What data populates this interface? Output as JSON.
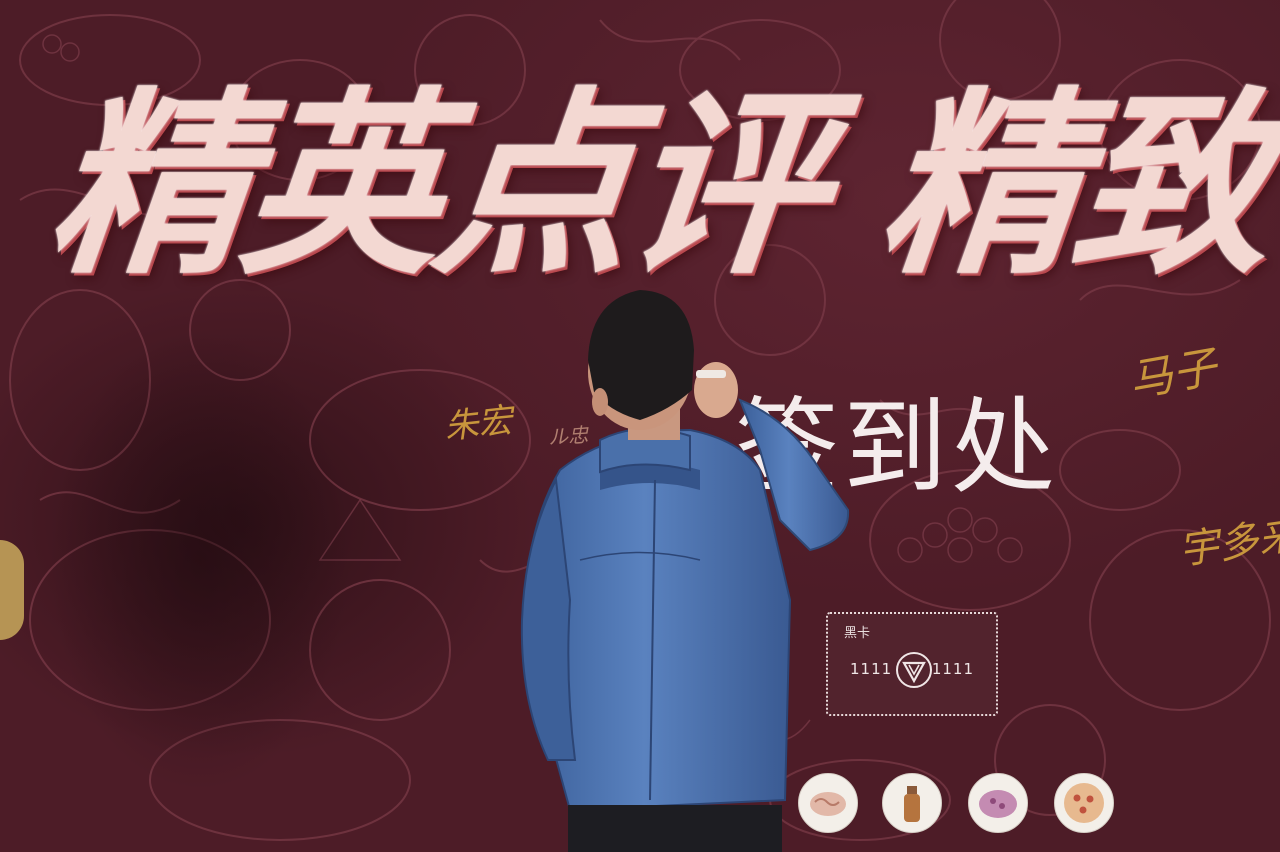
{
  "banner": {
    "headline": "精英点评 精致",
    "checkin_label": "签到处",
    "colors": {
      "background": "#4f1d28",
      "headline_fill": "#f3d8d2",
      "headline_shadow": "#b9484e",
      "checkin_text": "#f4ecec",
      "signature_ink": "#c8963c"
    }
  },
  "signatures": [
    {
      "text": "朱宏"
    },
    {
      "text": "马子"
    },
    {
      "text": "宇多来"
    },
    {
      "text": "ル忠"
    }
  ],
  "membership_card": {
    "brand": "黑卡",
    "left_number": "1111",
    "right_number": "1111",
    "logo_icon": "v-shield-icon"
  },
  "dish_icons": [
    "noodle-plate-icon",
    "drink-bottle-icon",
    "dessert-plate-icon",
    "pizza-icon"
  ],
  "person": {
    "jacket_color": "#4a6ea8",
    "hair_color": "#1c1a1a",
    "skin_color": "#d9a98f"
  }
}
